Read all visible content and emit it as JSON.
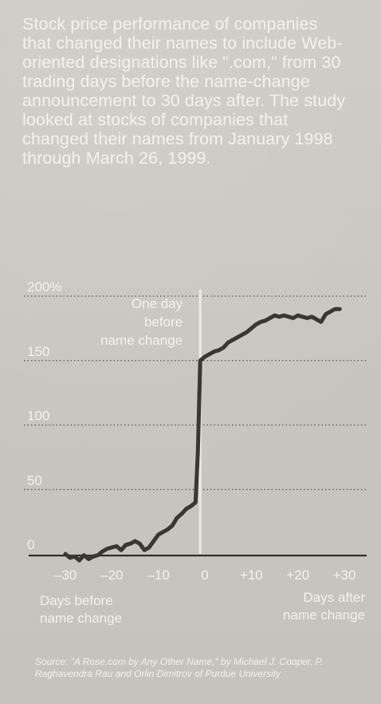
{
  "description": "Stock price performance of companies that changed their names to include Web-oriented designations like \".com,\" from 30 trading days before the name-change announcement to 30 days after. The study looked at stocks of companies that changed their names from January 1998 through March 26, 1999.",
  "source": "Source: \"A Rose.com by Any Other Name,\" by Michael J. Cooper, P. Raghavendra Rau and Orlin Dimitrov of Purdue University",
  "chart_data": {
    "type": "line",
    "title": "",
    "xlabel": "",
    "ylabel": "",
    "xlim": [
      -30,
      30
    ],
    "ylim": [
      -8,
      205
    ],
    "grid": "horizontal dotted",
    "x_ticks": [
      -30,
      -20,
      -10,
      0,
      10,
      20,
      30
    ],
    "x_tick_labels": [
      "–30",
      "–20",
      "–10",
      "0",
      "+10",
      "+20",
      "+30"
    ],
    "y_ticks": [
      0,
      50,
      100,
      150,
      200
    ],
    "y_tick_labels": [
      "0",
      "50",
      "100",
      "150",
      "200%"
    ],
    "x_axis_left_note": [
      "Days before",
      "name change"
    ],
    "x_axis_right_note": [
      "Days after",
      "name change"
    ],
    "annotation": {
      "x": -1,
      "lines": [
        "One day",
        "before",
        "name change"
      ]
    },
    "series": [
      {
        "x": [
          -30,
          -29,
          -28,
          -27,
          -26,
          -25,
          -24,
          -23,
          -22,
          -21,
          -20,
          -19,
          -18,
          -17,
          -16,
          -15,
          -14,
          -13,
          -12,
          -11,
          -10,
          -9,
          -8,
          -7,
          -6,
          -5,
          -4,
          -3,
          -2,
          -1.5,
          -1,
          0,
          1,
          2,
          3,
          4,
          5,
          6,
          7,
          8,
          9,
          10,
          11,
          12,
          13,
          14,
          15,
          16,
          17,
          18,
          19,
          20,
          21,
          22,
          23,
          24,
          25,
          26,
          27,
          28,
          29
        ],
        "y": [
          0,
          -3,
          -2,
          -5,
          -1,
          -4,
          -2,
          -1,
          2,
          4,
          5,
          6,
          3,
          7,
          8,
          10,
          8,
          3,
          5,
          10,
          15,
          17,
          19,
          22,
          28,
          31,
          35,
          37,
          40,
          80,
          150,
          153,
          155,
          157,
          158,
          160,
          164,
          166,
          168,
          170,
          172,
          175,
          178,
          180,
          181,
          183,
          185,
          184,
          185,
          184,
          183,
          185,
          184,
          183,
          184,
          182,
          180,
          186,
          188,
          190,
          190
        ]
      }
    ]
  }
}
